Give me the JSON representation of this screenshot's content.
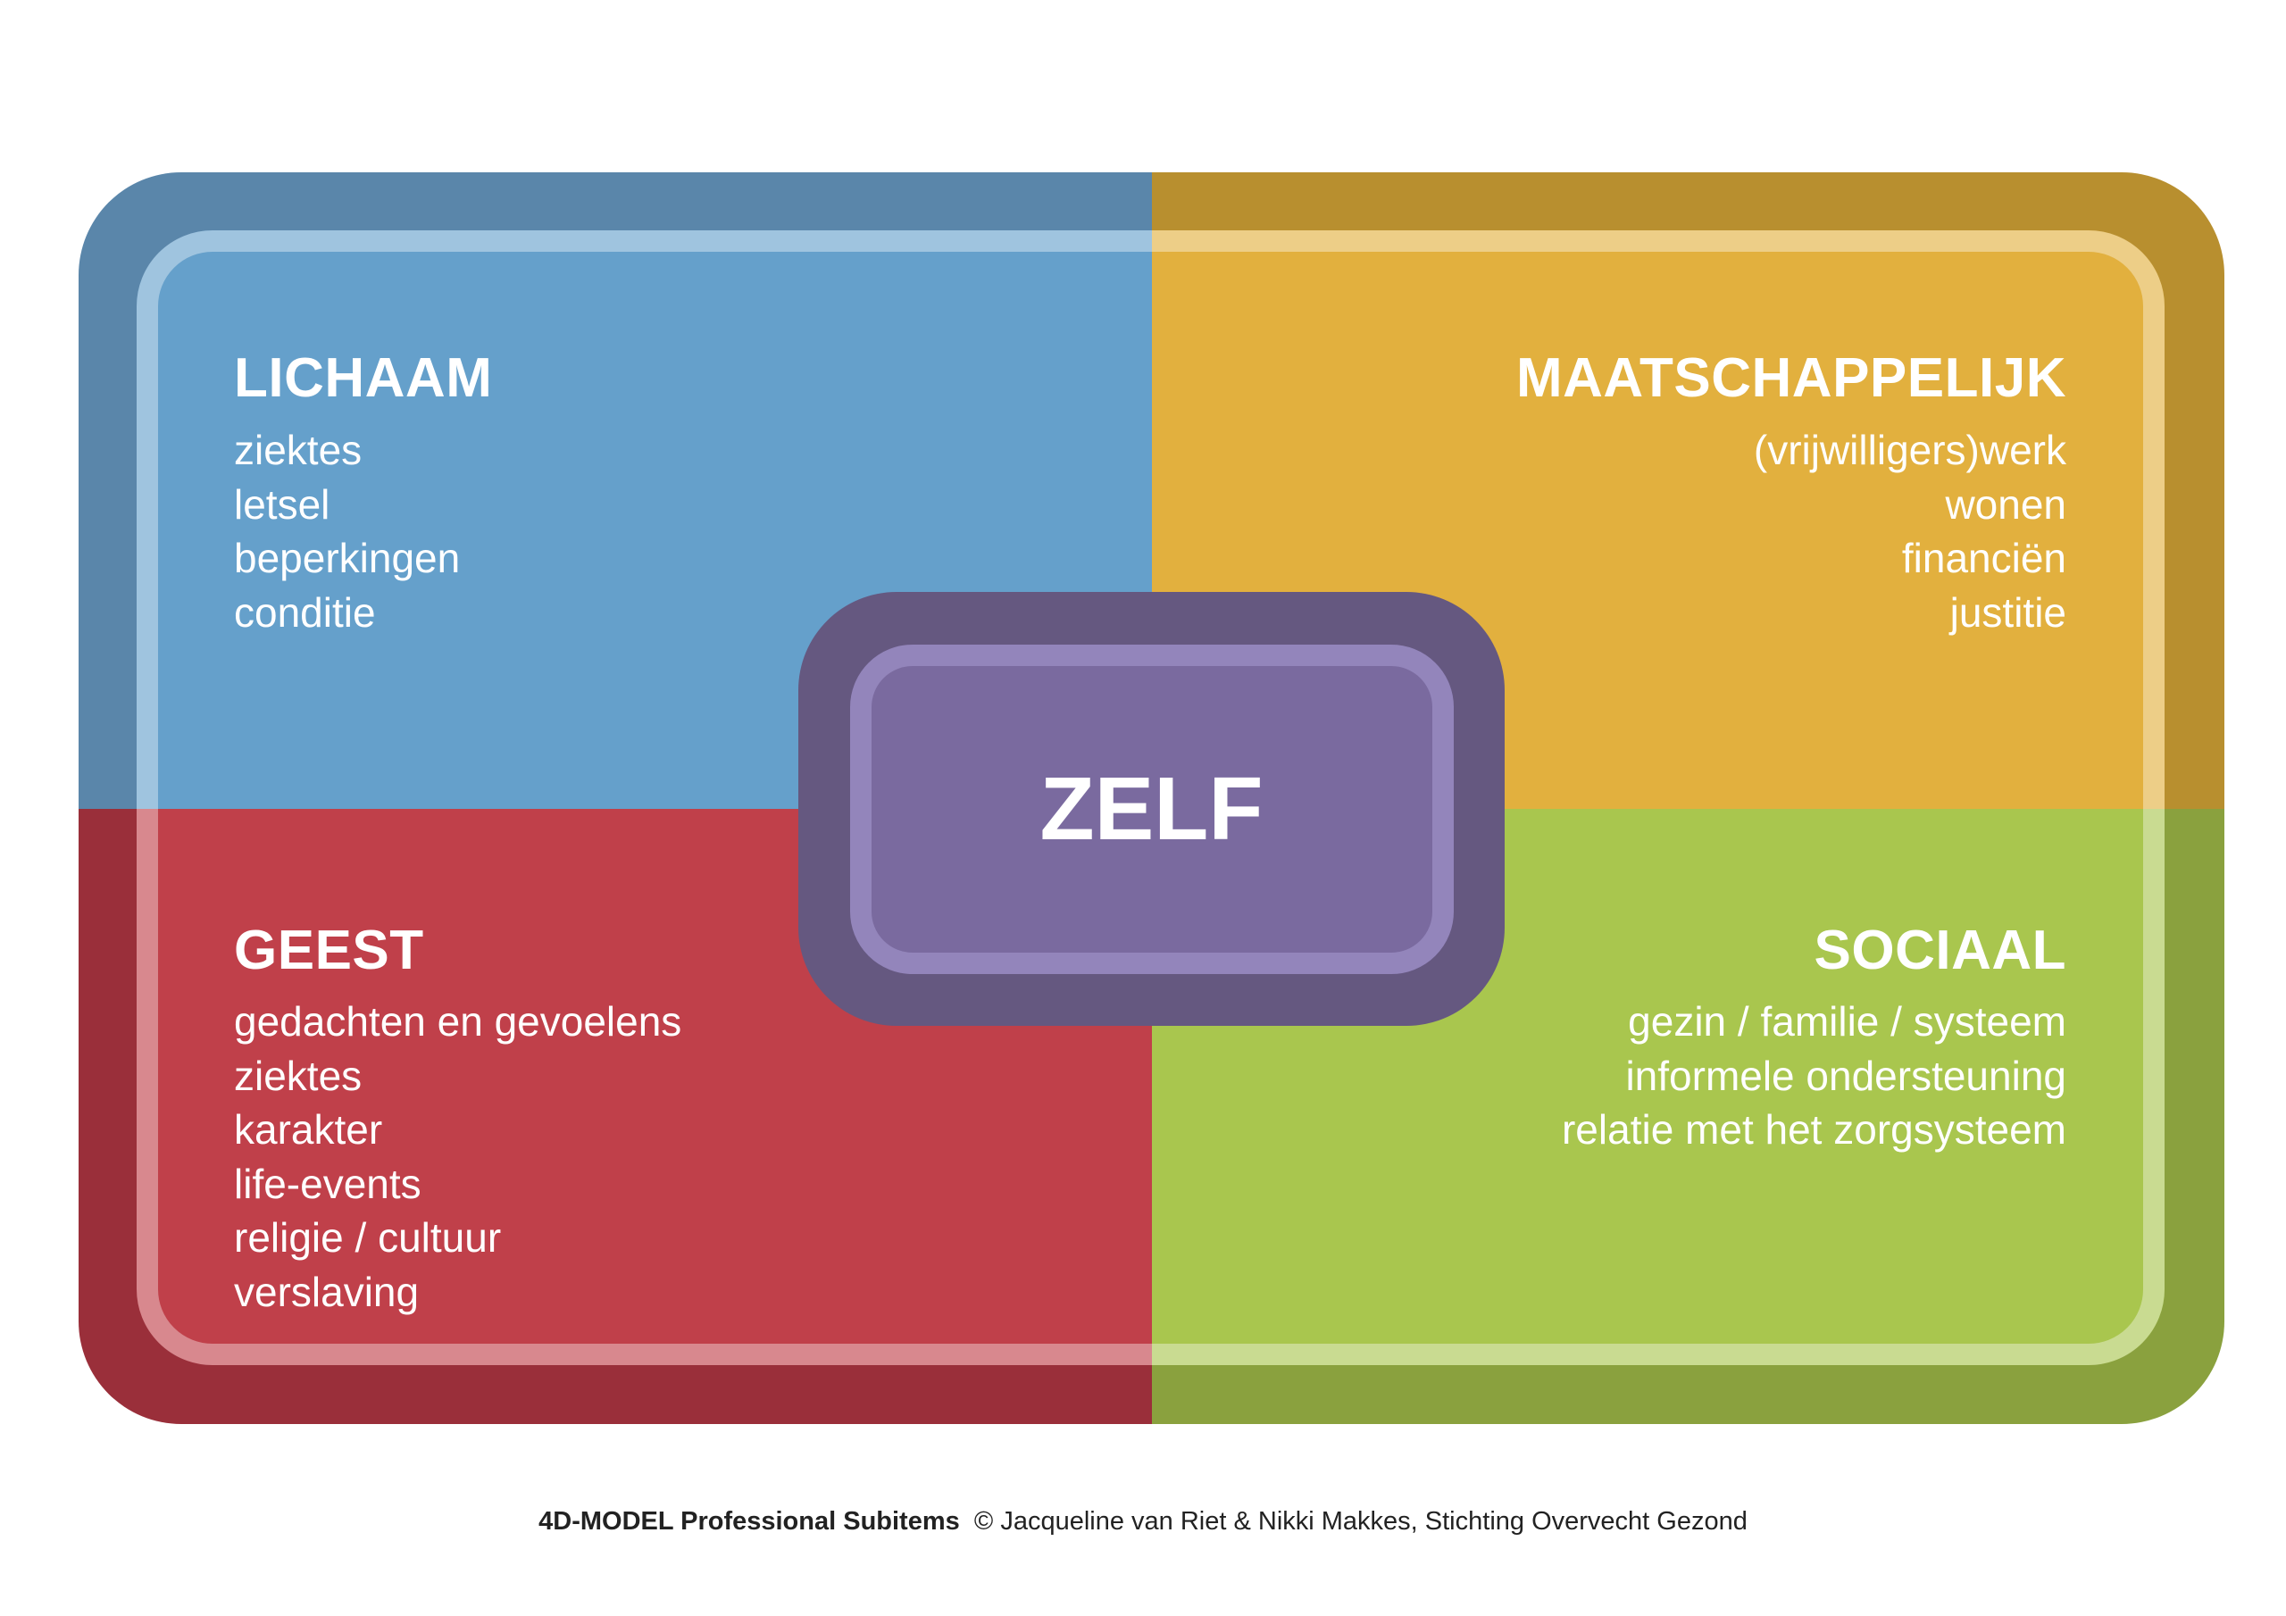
{
  "colors": {
    "lichaam": {
      "outer": "#5a86aa",
      "fill": "#65a0cb"
    },
    "maatschappelijk": {
      "outer": "#b88f2f",
      "fill": "#e2b03e"
    },
    "geest": {
      "outer": "#9a2f3a",
      "fill": "#c0404a"
    },
    "sociaal": {
      "outer": "#8aa13e",
      "fill": "#a9c64e"
    },
    "zelf": {
      "outer": "#655880",
      "fill": "#7a6a9f"
    }
  },
  "quadrants": {
    "lichaam": {
      "title": "LICHAAM",
      "items": [
        "ziektes",
        "letsel",
        "beperkingen",
        "conditie"
      ]
    },
    "maatschappelijk": {
      "title": "MAATSCHAPPELIJK",
      "items": [
        "(vrijwilligers)werk",
        "wonen",
        "financiën",
        "justitie"
      ]
    },
    "geest": {
      "title": "GEEST",
      "items": [
        "gedachten en gevoelens",
        "ziektes",
        "karakter",
        "life-events",
        "religie / cultuur",
        "verslaving"
      ]
    },
    "sociaal": {
      "title": "SOCIAAL",
      "items": [
        "gezin / familie / systeem",
        "informele ondersteuning",
        "relatie met het zorgsysteem"
      ]
    }
  },
  "center": {
    "label": "ZELF"
  },
  "footer": {
    "model": "4D-MODEL Professional Subitems",
    "credit": "© Jacqueline van Riet & Nikki Makkes, Stichting Overvecht Gezond"
  }
}
